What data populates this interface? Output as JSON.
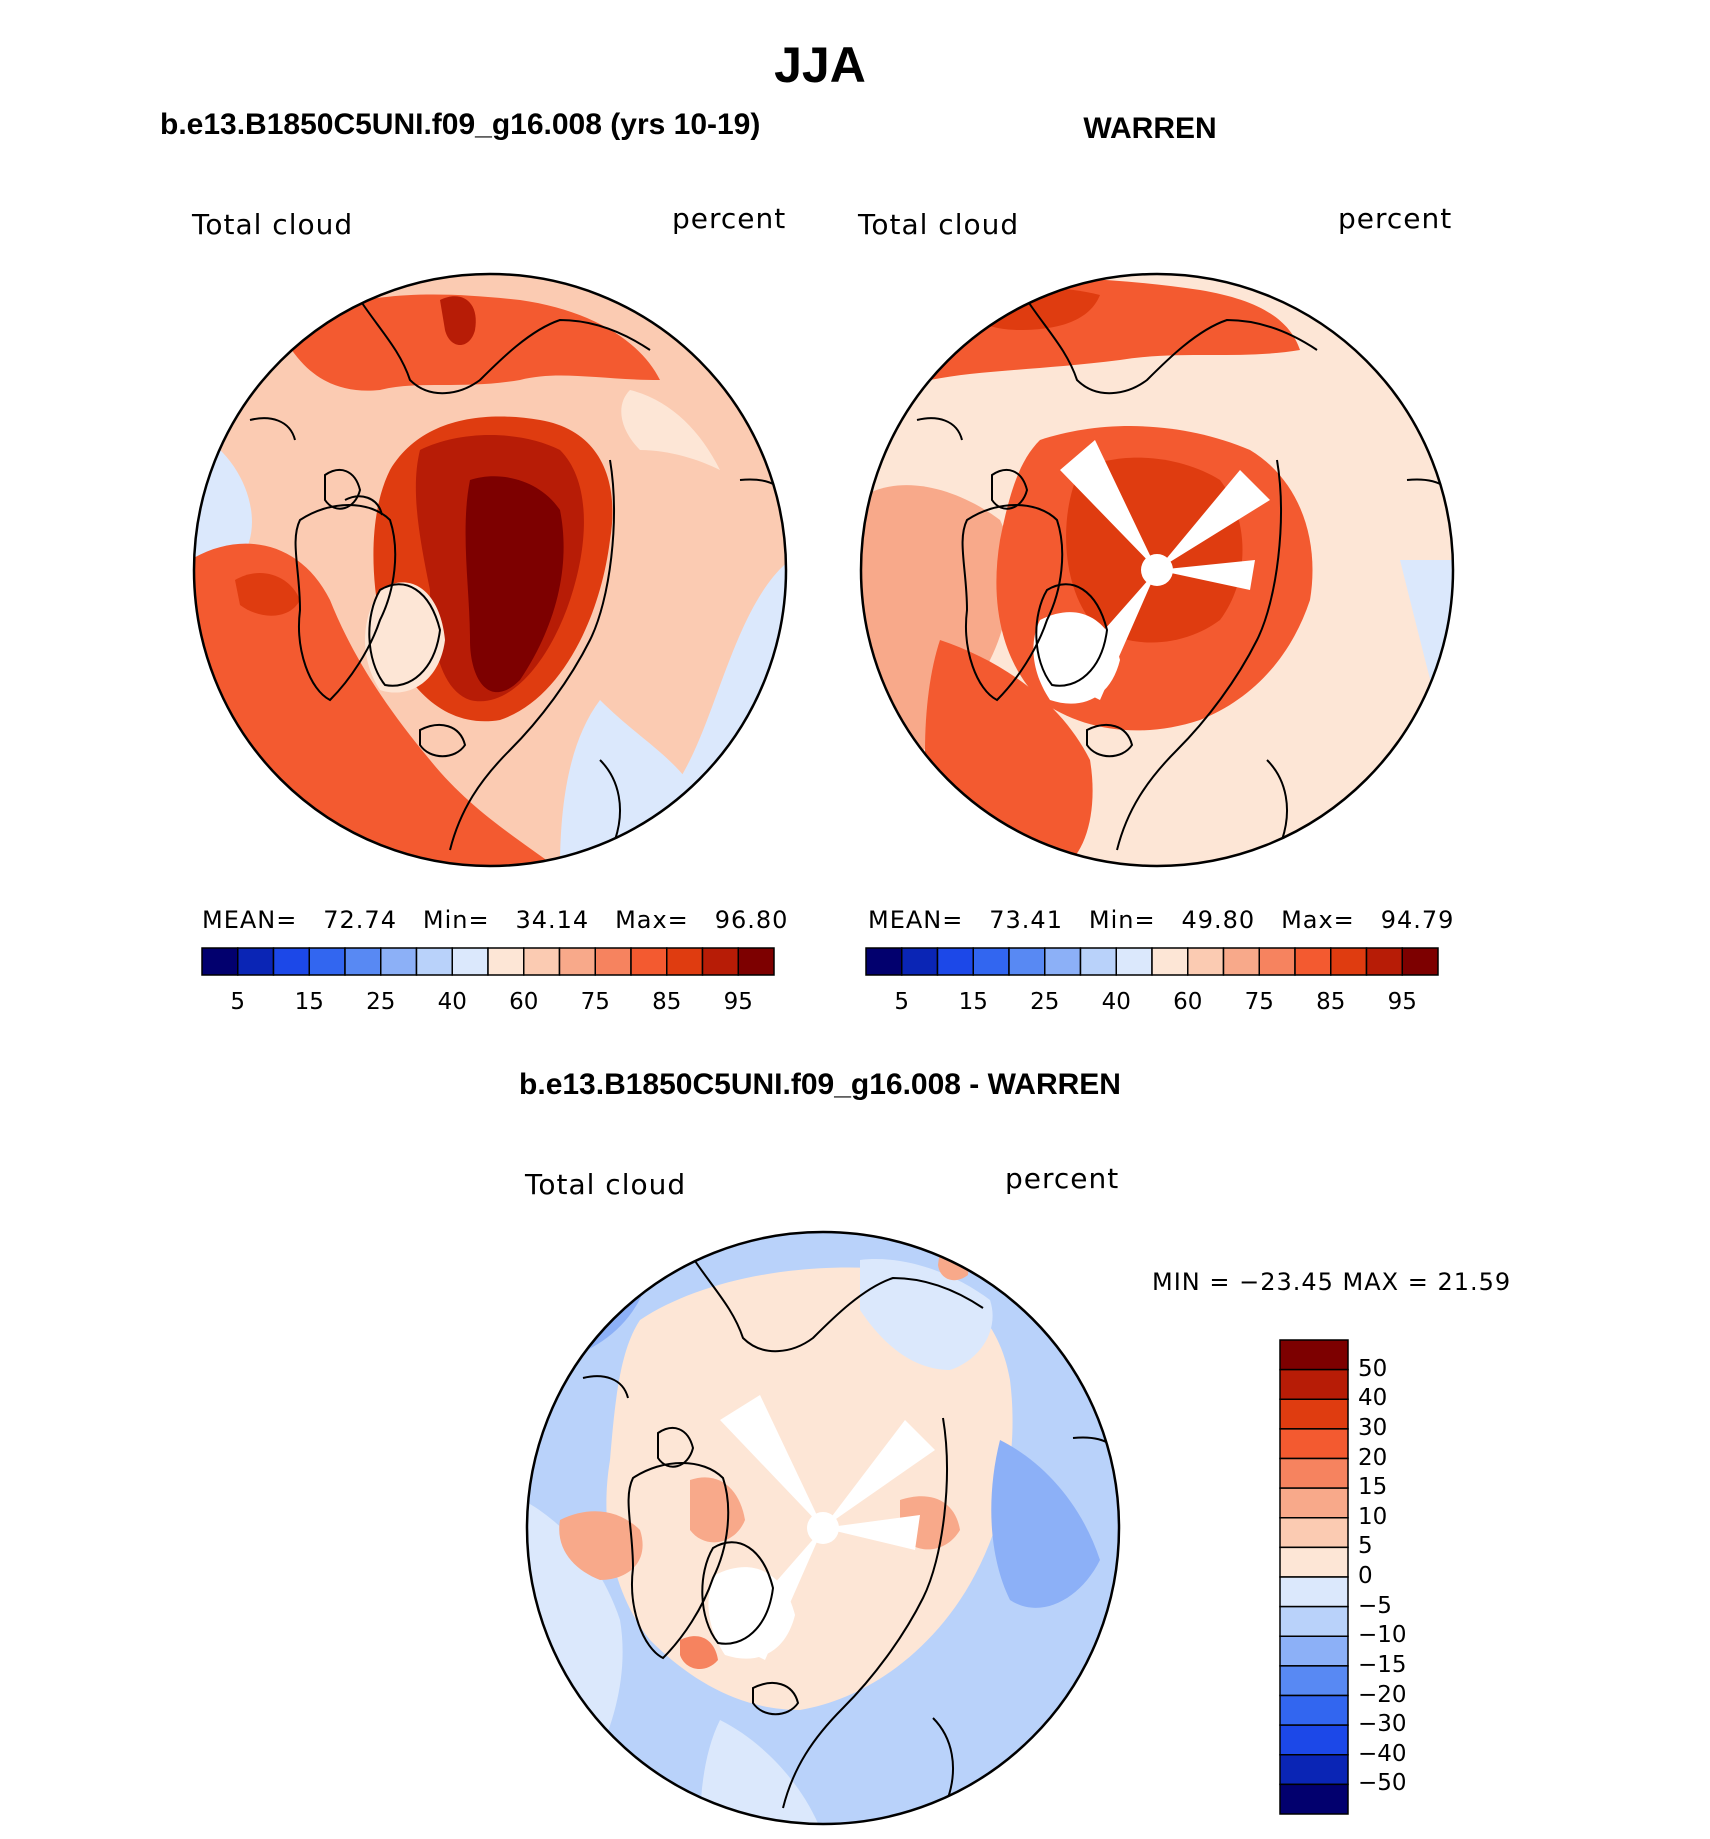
{
  "title": "JJA",
  "panels": [
    {
      "id": "model",
      "title": "b.e13.B1850C5UNI.f09_g16.008 (yrs 10-19)",
      "variable": "Total cloud",
      "units": "percent",
      "stats": {
        "mean_label": "MEAN=",
        "mean": "72.74",
        "min_label": "Min=",
        "min": "34.14",
        "max_label": "Max=",
        "max": "96.80"
      },
      "colorbar_ticks": [
        "5",
        "15",
        "25",
        "40",
        "60",
        "75",
        "85",
        "95"
      ]
    },
    {
      "id": "obs",
      "title": "WARREN",
      "variable": "Total cloud",
      "units": "percent",
      "stats": {
        "mean_label": "MEAN=",
        "mean": "73.41",
        "min_label": "Min=",
        "min": "49.80",
        "max_label": "Max=",
        "max": "94.79"
      },
      "colorbar_ticks": [
        "5",
        "15",
        "25",
        "40",
        "60",
        "75",
        "85",
        "95"
      ]
    }
  ],
  "difference": {
    "title": "b.e13.B1850C5UNI.f09_g16.008 - WARREN",
    "variable": "Total cloud",
    "units": "percent",
    "min_max_text": "MIN = −23.45 MAX =   21.59",
    "colorbar_ticks": [
      "50",
      "40",
      "30",
      "20",
      "15",
      "10",
      "5",
      "0",
      "−5",
      "−10",
      "−15",
      "−20",
      "−30",
      "−40",
      "−50"
    ]
  },
  "colors": {
    "abs_scale": [
      "#02006e",
      "#0a25b5",
      "#1c48e8",
      "#3266f0",
      "#5889f3",
      "#8cb0f7",
      "#b9d2fa",
      "#dbe8fc",
      "#fde6d6",
      "#fbcbb2",
      "#f8a98a",
      "#f6835f",
      "#f35a30",
      "#df3c10",
      "#b71c06",
      "#7d0000"
    ],
    "diff_scale": [
      "#7d0000",
      "#b71c06",
      "#df3c10",
      "#f35a30",
      "#f6835f",
      "#f8a98a",
      "#fbcbb2",
      "#fde6d6",
      "#dbe8fc",
      "#b9d2fa",
      "#8cb0f7",
      "#5889f3",
      "#3266f0",
      "#1c48e8",
      "#0a25b5",
      "#02006e"
    ],
    "coast": "#000000"
  }
}
